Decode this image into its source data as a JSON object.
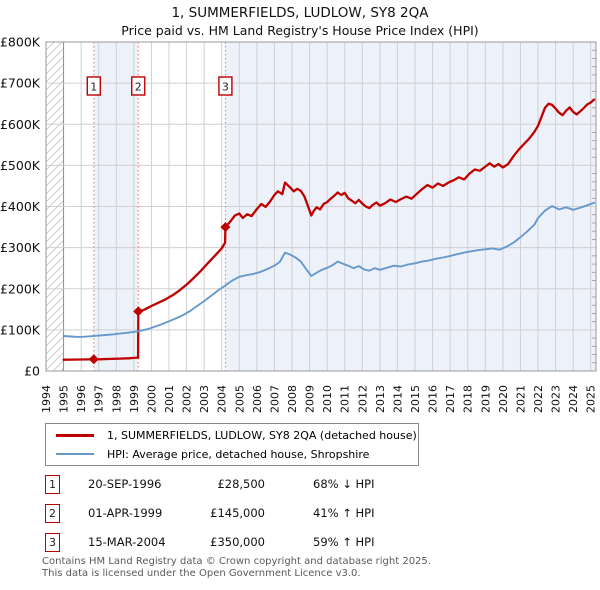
{
  "chart_data": {
    "type": "line",
    "title": "1, SUMMERFIELDS, LUDLOW, SY8 2QA",
    "subtitle": "Price paid vs. HM Land Registry's House Price Index (HPI)",
    "xlabel": "",
    "ylabel": "",
    "x_range": [
      1994,
      2025.3
    ],
    "y_range": [
      0,
      800000
    ],
    "grid": true,
    "legend_position": "below",
    "x_ticks": [
      1994,
      1995,
      1996,
      1997,
      1998,
      1999,
      2000,
      2001,
      2002,
      2003,
      2004,
      2005,
      2006,
      2007,
      2008,
      2009,
      2010,
      2011,
      2012,
      2013,
      2014,
      2015,
      2016,
      2017,
      2018,
      2019,
      2020,
      2021,
      2022,
      2023,
      2024,
      2025
    ],
    "y_tick_values": [
      0,
      100000,
      200000,
      300000,
      400000,
      500000,
      600000,
      700000,
      800000
    ],
    "y_tick_labels": [
      "£0",
      "£100K",
      "£200K",
      "£300K",
      "£400K",
      "£500K",
      "£600K",
      "£700K",
      "£800K"
    ],
    "pre_data_hatch_until": 1995,
    "band_color": "#edf1fa",
    "grid_color": "#d0d0d0",
    "event_line_color": "#ff6666",
    "ownership_bands": [
      [
        1996.72,
        1999.25
      ],
      [
        2004.21,
        2025.3
      ]
    ],
    "series": [
      {
        "name": "1, SUMMERFIELDS, LUDLOW, SY8 2QA (detached house)",
        "color": "#c00000",
        "points": [
          [
            1995.0,
            27500
          ],
          [
            1995.5,
            27600
          ],
          [
            1996.0,
            27900
          ],
          [
            1996.4,
            28200
          ],
          [
            1996.72,
            28500
          ],
          [
            1997.2,
            28800
          ],
          [
            1997.7,
            29400
          ],
          [
            1998.2,
            30200
          ],
          [
            1998.7,
            31000
          ],
          [
            1999.0,
            31800
          ],
          [
            1999.24,
            32500
          ],
          [
            1999.25,
            145000
          ],
          [
            1999.6,
            149000
          ],
          [
            2000.0,
            158000
          ],
          [
            2000.4,
            166000
          ],
          [
            2000.8,
            174000
          ],
          [
            2001.2,
            184000
          ],
          [
            2001.6,
            196000
          ],
          [
            2002.0,
            210000
          ],
          [
            2002.4,
            226000
          ],
          [
            2002.8,
            243000
          ],
          [
            2003.2,
            262000
          ],
          [
            2003.6,
            280000
          ],
          [
            2004.0,
            298000
          ],
          [
            2004.19,
            312000
          ],
          [
            2004.21,
            350000
          ],
          [
            2004.5,
            364000
          ],
          [
            2004.75,
            378000
          ],
          [
            2005.0,
            383000
          ],
          [
            2005.2,
            372000
          ],
          [
            2005.45,
            381000
          ],
          [
            2005.7,
            377000
          ],
          [
            2006.0,
            394000
          ],
          [
            2006.25,
            406000
          ],
          [
            2006.5,
            399000
          ],
          [
            2006.75,
            412000
          ],
          [
            2007.0,
            428000
          ],
          [
            2007.2,
            437000
          ],
          [
            2007.45,
            430000
          ],
          [
            2007.6,
            458000
          ],
          [
            2007.75,
            452000
          ],
          [
            2007.9,
            446000
          ],
          [
            2008.1,
            437000
          ],
          [
            2008.3,
            443000
          ],
          [
            2008.5,
            438000
          ],
          [
            2008.7,
            425000
          ],
          [
            2008.9,
            402000
          ],
          [
            2009.1,
            378000
          ],
          [
            2009.25,
            390000
          ],
          [
            2009.4,
            398000
          ],
          [
            2009.6,
            393000
          ],
          [
            2009.8,
            406000
          ],
          [
            2010.0,
            411000
          ],
          [
            2010.2,
            419000
          ],
          [
            2010.4,
            426000
          ],
          [
            2010.6,
            434000
          ],
          [
            2010.8,
            428000
          ],
          [
            2011.0,
            433000
          ],
          [
            2011.2,
            420000
          ],
          [
            2011.4,
            414000
          ],
          [
            2011.6,
            408000
          ],
          [
            2011.8,
            416000
          ],
          [
            2012.0,
            407000
          ],
          [
            2012.2,
            400000
          ],
          [
            2012.4,
            396000
          ],
          [
            2012.6,
            404000
          ],
          [
            2012.8,
            410000
          ],
          [
            2013.0,
            402000
          ],
          [
            2013.3,
            408000
          ],
          [
            2013.6,
            417000
          ],
          [
            2013.9,
            411000
          ],
          [
            2014.2,
            418000
          ],
          [
            2014.5,
            424000
          ],
          [
            2014.8,
            419000
          ],
          [
            2015.1,
            431000
          ],
          [
            2015.4,
            442000
          ],
          [
            2015.7,
            452000
          ],
          [
            2016.0,
            446000
          ],
          [
            2016.3,
            456000
          ],
          [
            2016.6,
            450000
          ],
          [
            2016.9,
            458000
          ],
          [
            2017.2,
            464000
          ],
          [
            2017.5,
            471000
          ],
          [
            2017.8,
            466000
          ],
          [
            2018.1,
            480000
          ],
          [
            2018.4,
            490000
          ],
          [
            2018.7,
            487000
          ],
          [
            2019.0,
            497000
          ],
          [
            2019.25,
            505000
          ],
          [
            2019.5,
            497000
          ],
          [
            2019.75,
            503000
          ],
          [
            2020.0,
            495000
          ],
          [
            2020.3,
            503000
          ],
          [
            2020.6,
            522000
          ],
          [
            2020.9,
            538000
          ],
          [
            2021.2,
            552000
          ],
          [
            2021.5,
            565000
          ],
          [
            2021.8,
            582000
          ],
          [
            2022.0,
            596000
          ],
          [
            2022.2,
            618000
          ],
          [
            2022.4,
            640000
          ],
          [
            2022.6,
            650000
          ],
          [
            2022.8,
            647000
          ],
          [
            2023.0,
            638000
          ],
          [
            2023.2,
            628000
          ],
          [
            2023.4,
            622000
          ],
          [
            2023.6,
            633000
          ],
          [
            2023.8,
            641000
          ],
          [
            2024.0,
            630000
          ],
          [
            2024.2,
            624000
          ],
          [
            2024.5,
            635000
          ],
          [
            2024.8,
            648000
          ],
          [
            2025.0,
            653000
          ],
          [
            2025.2,
            660000
          ]
        ]
      },
      {
        "name": "HPI: Average price, detached house, Shropshire",
        "color": "#6699cc",
        "points": [
          [
            1995.0,
            85000
          ],
          [
            1995.4,
            84000
          ],
          [
            1995.8,
            83000
          ],
          [
            1996.2,
            83500
          ],
          [
            1996.6,
            84500
          ],
          [
            1997.0,
            86000
          ],
          [
            1997.4,
            87500
          ],
          [
            1997.8,
            89000
          ],
          [
            1998.2,
            91000
          ],
          [
            1998.6,
            93000
          ],
          [
            1999.0,
            95000
          ],
          [
            1999.4,
            98000
          ],
          [
            1999.8,
            102000
          ],
          [
            2000.2,
            108000
          ],
          [
            2000.6,
            114000
          ],
          [
            2001.0,
            121000
          ],
          [
            2001.4,
            128000
          ],
          [
            2001.8,
            136000
          ],
          [
            2002.2,
            146000
          ],
          [
            2002.6,
            158000
          ],
          [
            2003.0,
            170000
          ],
          [
            2003.4,
            183000
          ],
          [
            2003.8,
            196000
          ],
          [
            2004.2,
            208000
          ],
          [
            2004.6,
            220000
          ],
          [
            2005.0,
            229000
          ],
          [
            2005.4,
            233000
          ],
          [
            2005.8,
            236000
          ],
          [
            2006.2,
            241000
          ],
          [
            2006.6,
            248000
          ],
          [
            2007.0,
            256000
          ],
          [
            2007.3,
            265000
          ],
          [
            2007.6,
            288000
          ],
          [
            2007.9,
            283000
          ],
          [
            2008.2,
            276000
          ],
          [
            2008.5,
            266000
          ],
          [
            2008.8,
            248000
          ],
          [
            2009.1,
            231000
          ],
          [
            2009.4,
            239000
          ],
          [
            2009.7,
            246000
          ],
          [
            2010.0,
            251000
          ],
          [
            2010.3,
            257000
          ],
          [
            2010.6,
            266000
          ],
          [
            2010.9,
            261000
          ],
          [
            2011.2,
            256000
          ],
          [
            2011.5,
            250000
          ],
          [
            2011.8,
            255000
          ],
          [
            2012.1,
            247000
          ],
          [
            2012.4,
            244000
          ],
          [
            2012.7,
            250000
          ],
          [
            2013.0,
            246000
          ],
          [
            2013.4,
            251000
          ],
          [
            2013.8,
            256000
          ],
          [
            2014.2,
            254000
          ],
          [
            2014.6,
            259000
          ],
          [
            2015.0,
            262000
          ],
          [
            2015.4,
            266000
          ],
          [
            2015.8,
            269000
          ],
          [
            2016.2,
            273000
          ],
          [
            2016.6,
            276000
          ],
          [
            2017.0,
            280000
          ],
          [
            2017.4,
            284000
          ],
          [
            2017.8,
            288000
          ],
          [
            2018.2,
            291000
          ],
          [
            2018.6,
            294000
          ],
          [
            2019.0,
            296000
          ],
          [
            2019.4,
            298000
          ],
          [
            2019.8,
            295000
          ],
          [
            2020.2,
            302000
          ],
          [
            2020.6,
            312000
          ],
          [
            2021.0,
            325000
          ],
          [
            2021.4,
            340000
          ],
          [
            2021.8,
            356000
          ],
          [
            2022.0,
            372000
          ],
          [
            2022.4,
            390000
          ],
          [
            2022.8,
            401000
          ],
          [
            2023.2,
            393000
          ],
          [
            2023.6,
            398000
          ],
          [
            2024.0,
            392000
          ],
          [
            2024.4,
            397000
          ],
          [
            2024.8,
            403000
          ],
          [
            2025.0,
            406000
          ],
          [
            2025.2,
            409000
          ]
        ]
      }
    ],
    "sales": [
      {
        "label": "1",
        "year": 1996.72,
        "price": 28500
      },
      {
        "label": "2",
        "year": 1999.25,
        "price": 145000
      },
      {
        "label": "3",
        "year": 2004.21,
        "price": 350000
      }
    ]
  },
  "transactions": [
    {
      "num": "1",
      "date": "20-SEP-1996",
      "price": "£28,500",
      "vs_hpi": "68% ↓ HPI"
    },
    {
      "num": "2",
      "date": "01-APR-1999",
      "price": "£145,000",
      "vs_hpi": "41% ↑ HPI"
    },
    {
      "num": "3",
      "date": "15-MAR-2004",
      "price": "£350,000",
      "vs_hpi": "59% ↑ HPI"
    }
  ],
  "footer": {
    "line1": "Contains HM Land Registry data © Crown copyright and database right 2025.",
    "line2": "This data is licensed under the Open Government Licence v3.0."
  }
}
